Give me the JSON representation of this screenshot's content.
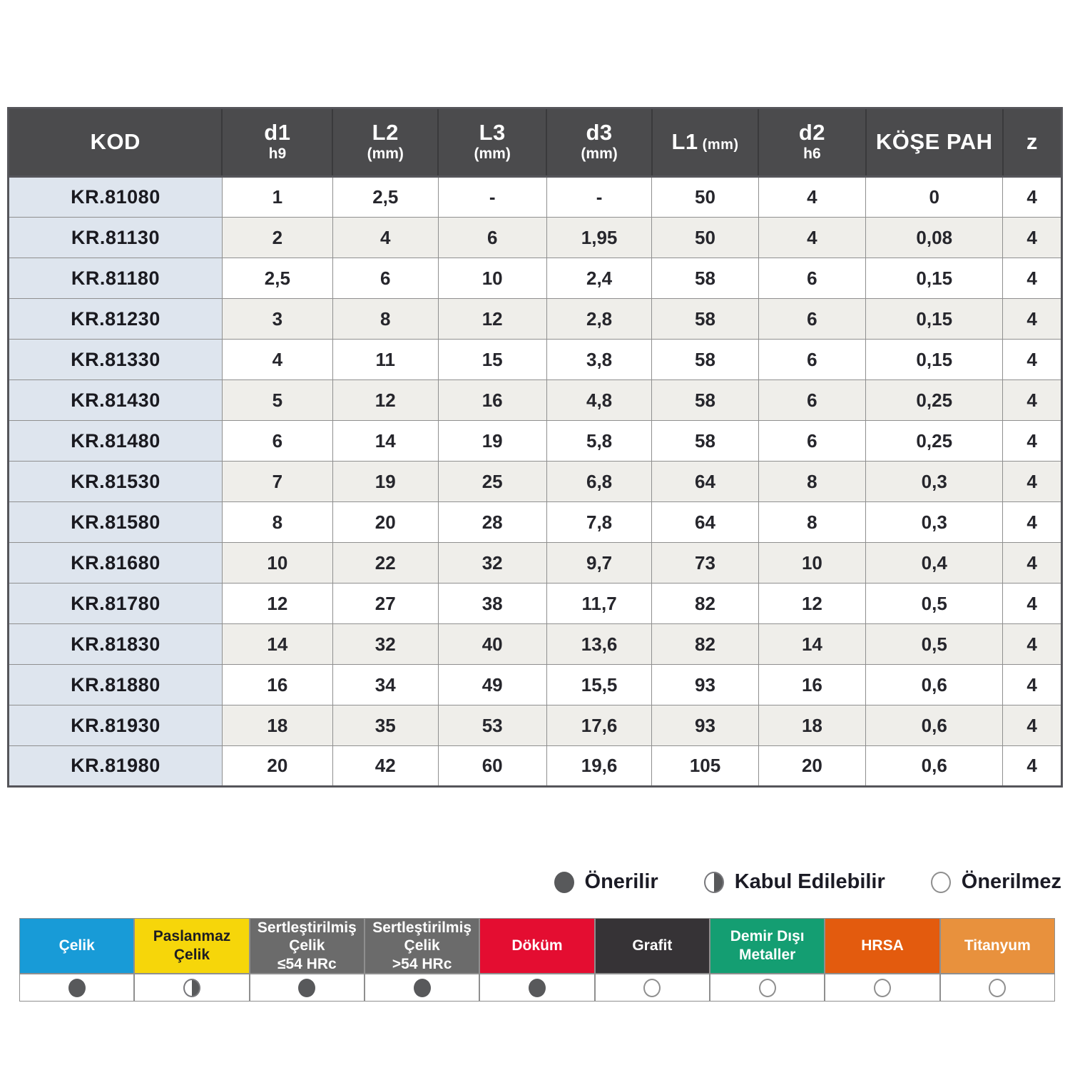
{
  "table": {
    "columns": [
      {
        "key": "kod",
        "label": "KOD",
        "sub": "",
        "sub_inline": ""
      },
      {
        "key": "d1",
        "label": "d1",
        "sub": "h9",
        "sub_inline": ""
      },
      {
        "key": "l2",
        "label": "L2",
        "sub": "(mm)",
        "sub_inline": ""
      },
      {
        "key": "l3",
        "label": "L3",
        "sub": "(mm)",
        "sub_inline": ""
      },
      {
        "key": "d3",
        "label": "d3",
        "sub": "(mm)",
        "sub_inline": ""
      },
      {
        "key": "l1",
        "label": "L1",
        "sub": "",
        "sub_inline": "(mm)"
      },
      {
        "key": "d2",
        "label": "d2",
        "sub": "h6",
        "sub_inline": ""
      },
      {
        "key": "kose-pah",
        "label": "KÖŞE PAH",
        "sub": "",
        "sub_inline": ""
      },
      {
        "key": "z",
        "label": "z",
        "sub": "",
        "sub_inline": ""
      }
    ],
    "rows": [
      [
        "KR.81080",
        "1",
        "2,5",
        "-",
        "-",
        "50",
        "4",
        "0",
        "4"
      ],
      [
        "KR.81130",
        "2",
        "4",
        "6",
        "1,95",
        "50",
        "4",
        "0,08",
        "4"
      ],
      [
        "KR.81180",
        "2,5",
        "6",
        "10",
        "2,4",
        "58",
        "6",
        "0,15",
        "4"
      ],
      [
        "KR.81230",
        "3",
        "8",
        "12",
        "2,8",
        "58",
        "6",
        "0,15",
        "4"
      ],
      [
        "KR.81330",
        "4",
        "11",
        "15",
        "3,8",
        "58",
        "6",
        "0,15",
        "4"
      ],
      [
        "KR.81430",
        "5",
        "12",
        "16",
        "4,8",
        "58",
        "6",
        "0,25",
        "4"
      ],
      [
        "KR.81480",
        "6",
        "14",
        "19",
        "5,8",
        "58",
        "6",
        "0,25",
        "4"
      ],
      [
        "KR.81530",
        "7",
        "19",
        "25",
        "6,8",
        "64",
        "8",
        "0,3",
        "4"
      ],
      [
        "KR.81580",
        "8",
        "20",
        "28",
        "7,8",
        "64",
        "8",
        "0,3",
        "4"
      ],
      [
        "KR.81680",
        "10",
        "22",
        "32",
        "9,7",
        "73",
        "10",
        "0,4",
        "4"
      ],
      [
        "KR.81780",
        "12",
        "27",
        "38",
        "11,7",
        "82",
        "12",
        "0,5",
        "4"
      ],
      [
        "KR.81830",
        "14",
        "32",
        "40",
        "13,6",
        "82",
        "14",
        "0,5",
        "4"
      ],
      [
        "KR.81880",
        "16",
        "34",
        "49",
        "15,5",
        "93",
        "16",
        "0,6",
        "4"
      ],
      [
        "KR.81930",
        "18",
        "35",
        "53",
        "17,6",
        "93",
        "18",
        "0,6",
        "4"
      ],
      [
        "KR.81980",
        "20",
        "42",
        "60",
        "19,6",
        "105",
        "20",
        "0,6",
        "4"
      ]
    ]
  },
  "legend": {
    "items": [
      {
        "label": "Önerilir",
        "state": "filled"
      },
      {
        "label": "Kabul Edilebilir",
        "state": "half"
      },
      {
        "label": "Önerilmez",
        "state": "empty"
      }
    ]
  },
  "materials": {
    "items": [
      {
        "label": "Çelik",
        "color": "#189BD7",
        "text_color": "#ffffff",
        "rating": "filled"
      },
      {
        "label": "Paslanmaz\nÇelik",
        "color": "#F6D60A",
        "text_color": "#1D1D22",
        "rating": "half"
      },
      {
        "label": "Sertleştirilmiş\nÇelik\n≤54 HRc",
        "color": "#6B6B6B",
        "text_color": "#ffffff",
        "rating": "filled"
      },
      {
        "label": "Sertleştirilmiş\nÇelik\n>54 HRc",
        "color": "#6B6B6B",
        "text_color": "#ffffff",
        "rating": "filled"
      },
      {
        "label": "Döküm",
        "color": "#E40D31",
        "text_color": "#ffffff",
        "rating": "filled"
      },
      {
        "label": "Grafit",
        "color": "#363336",
        "text_color": "#ffffff",
        "rating": "empty"
      },
      {
        "label": "Demir Dışı\nMetaller",
        "color": "#149E72",
        "text_color": "#ffffff",
        "rating": "empty"
      },
      {
        "label": "HRSA",
        "color": "#E35B0E",
        "text_color": "#ffffff",
        "rating": "empty"
      },
      {
        "label": "Titanyum",
        "color": "#E8913D",
        "text_color": "#ffffff",
        "rating": "empty"
      }
    ]
  },
  "colors": {
    "header_bg": "#4B4B4D",
    "kod_column_bg": "#DEE5EE",
    "alt_row_bg": "#EFEEEA",
    "grid_line": "#8F8F8F",
    "dot_fill": "#58595B"
  }
}
